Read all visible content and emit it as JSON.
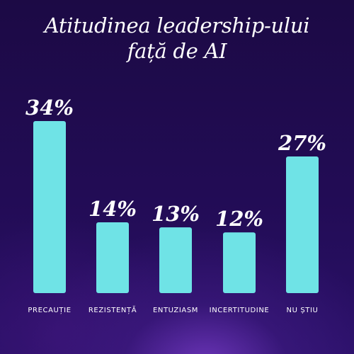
{
  "chart_data": {
    "type": "bar",
    "title_lines": [
      "Atitudinea leadership-ului",
      "față de AI"
    ],
    "categories": [
      "PRECAUȚIE",
      "REZISTENȚĂ",
      "ENTUZIASM",
      "INCERTITUDINE",
      "NU ȘTIU"
    ],
    "values": [
      34,
      14,
      13,
      12,
      27
    ],
    "value_labels": [
      "34%",
      "14%",
      "13%",
      "12%",
      "27%"
    ],
    "ylim": [
      0,
      34
    ],
    "grid": false,
    "legend": "none",
    "bar_color": "#6fe3e6"
  }
}
